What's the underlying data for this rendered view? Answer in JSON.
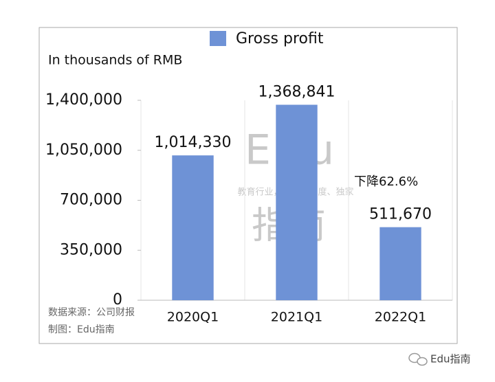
{
  "chart_data": {
    "type": "bar",
    "y_axis_label": "In thousands of RMB",
    "categories": [
      "2020Q1",
      "2021Q1",
      "2022Q1"
    ],
    "series": [
      {
        "name": "Gross profit",
        "color": "#6e92d6",
        "values": [
          1014330,
          1368841,
          511670
        ],
        "value_labels": [
          "1,014,330",
          "1,368,841",
          "511,670"
        ]
      }
    ],
    "ylim": [
      0,
      1400000
    ],
    "yticks": [
      0,
      {
        "value": 350000,
        "label": "350,000"
      },
      {
        "value": 700000,
        "label": "700,000"
      },
      {
        "value": 1050000,
        "label": "1,050,000"
      },
      {
        "value": 1400000,
        "label": "1,400,000"
      }
    ],
    "annotation": "下降62.6%",
    "source": "数据来源：公司财报",
    "credit": "制图：Edu指南",
    "legend": "top"
  },
  "watermark": {
    "title": "Edu",
    "tagline": "教育行业，前沿、深度、独家",
    "logo": "指南"
  },
  "brand": "Edu指南"
}
